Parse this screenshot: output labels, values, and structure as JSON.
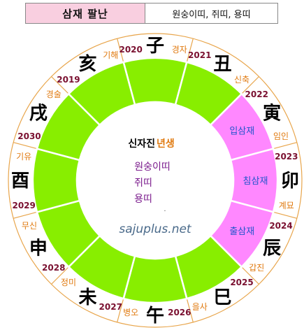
{
  "header": {
    "title": "삼재 팔난",
    "value": "원숭이띠, 쥐띠, 용띠"
  },
  "center": {
    "title_part1": "신자진",
    "title_part2": "년생",
    "animals": [
      "원숭이띠",
      "쥐띠",
      "용띠"
    ],
    "dot": ".",
    "watermark": "sajuplus.net"
  },
  "segments": [
    {
      "branch": "子",
      "year": "2020",
      "ganji": "경자",
      "phase": ""
    },
    {
      "branch": "丑",
      "year": "2021",
      "ganji": "신축",
      "phase": ""
    },
    {
      "branch": "寅",
      "year": "2022",
      "ganji": "임인",
      "phase": "입삼재"
    },
    {
      "branch": "卯",
      "year": "2023",
      "ganji": "계묘",
      "phase": "침삼재"
    },
    {
      "branch": "辰",
      "year": "2024",
      "ganji": "갑진",
      "phase": "출삼재"
    },
    {
      "branch": "巳",
      "year": "2025",
      "ganji": "을사",
      "phase": ""
    },
    {
      "branch": "午",
      "year": "2026",
      "ganji": "병오",
      "phase": ""
    },
    {
      "branch": "未",
      "year": "2027",
      "ganji": "정미",
      "phase": ""
    },
    {
      "branch": "申",
      "year": "2028",
      "ganji": "무신",
      "phase": ""
    },
    {
      "branch": "酉",
      "year": "2029",
      "ganji": "기유",
      "phase": ""
    },
    {
      "branch": "戌",
      "year": "2030",
      "ganji": "경술",
      "phase": ""
    },
    {
      "branch": "亥",
      "year": "2019",
      "ganji": "기해",
      "phase": ""
    }
  ],
  "colors": {
    "green": "#88ee00",
    "pink": "#ff88ff",
    "ring_line": "#e8a54b",
    "year": "#7a1030",
    "ganji": "#e07a10",
    "phase_text": "#2255cc",
    "center_title": "#000000",
    "center_title2": "#e07a10",
    "center_animals": "#7a1a8c",
    "watermark": "#4a6a8a"
  }
}
